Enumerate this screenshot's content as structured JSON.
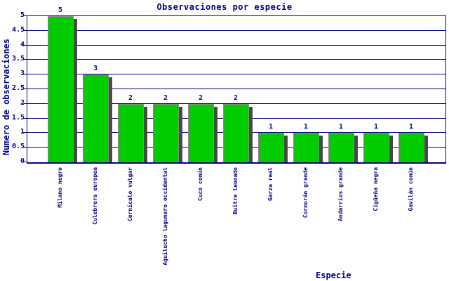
{
  "chart_data": {
    "type": "bar",
    "title": "Observaciones por especie",
    "xlabel": "Especie",
    "ylabel": "Numero de observaciones",
    "categories": [
      "Milano negro",
      "Culebrera europea",
      "Cernícalo vulgar",
      "Aguilucho lagunero occidental",
      "Cuco común",
      "Buitre leonado",
      "Garza real",
      "Cormorán grande",
      "Andarríos grande",
      "Cigüeña negra",
      "Gavilán común"
    ],
    "values": [
      5,
      3,
      2,
      2,
      2,
      2,
      1,
      1,
      1,
      1,
      1
    ],
    "ylim": [
      0,
      5
    ],
    "yticks": [
      "0",
      "0.5",
      "1",
      "1.5",
      "2",
      "2.5",
      "3",
      "3.5",
      "4",
      "4.5",
      "5"
    ],
    "grid": true,
    "value_labels_shown": true,
    "legend": "none",
    "colors": {
      "bar": "#00cc00",
      "bar_border": "#8c8c8c",
      "bar_shadow": "#484848",
      "axis": "#000080",
      "text": "#000080",
      "background": "#ffffff"
    }
  }
}
